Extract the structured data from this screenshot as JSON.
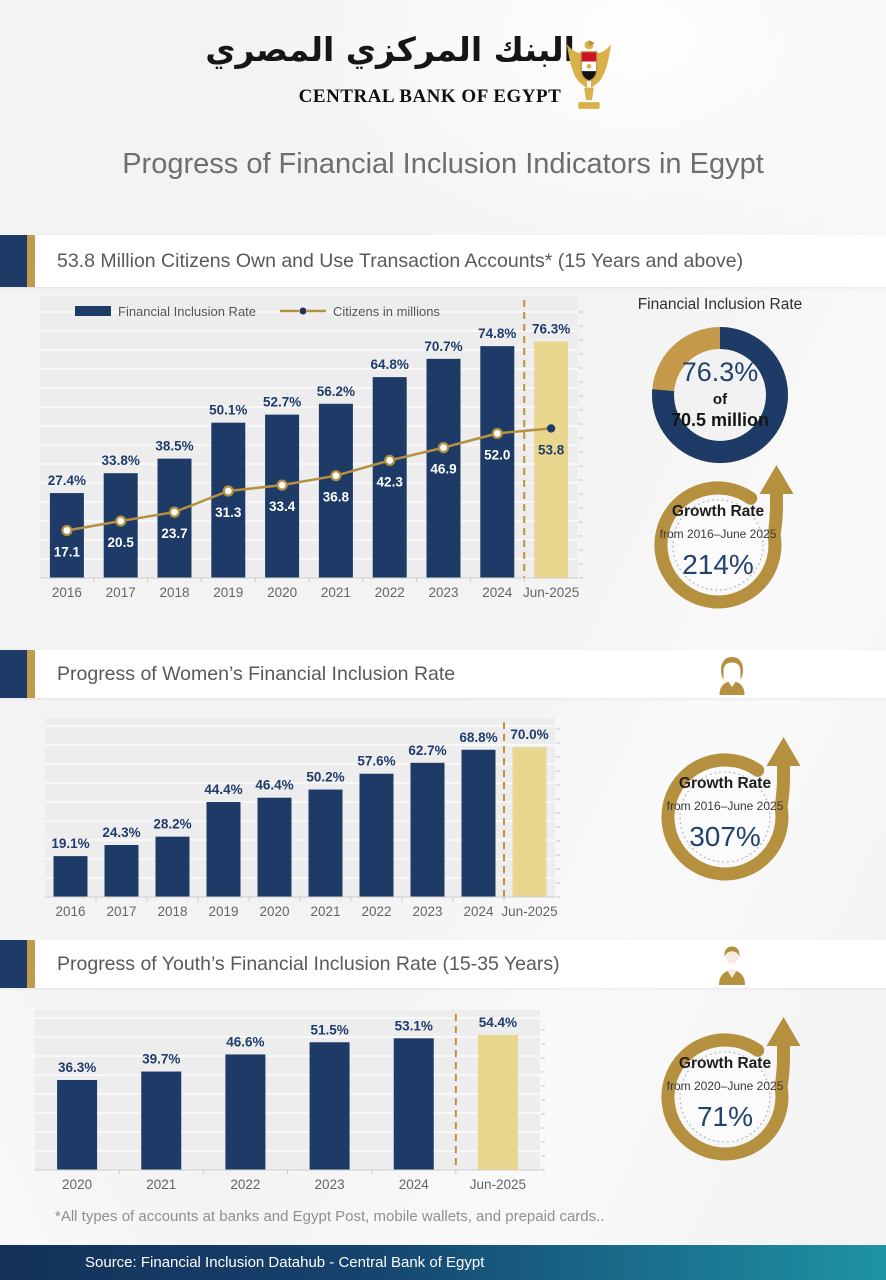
{
  "header": {
    "logo_arabic": "البنك المركزي المصري",
    "logo_english": "CENTRAL BANK OF EGYPT",
    "emblem": "egypt-eagle-emblem"
  },
  "page_title": "Progress of Financial Inclusion Indicators in Egypt",
  "sections": [
    {
      "title": "53.8 Million Citizens Own and Use Transaction Accounts* (15 Years and above)",
      "icon": "none"
    },
    {
      "title": "Progress of Women’s Financial Inclusion Rate",
      "icon": "woman-icon"
    },
    {
      "title": "Progress of Youth’s Financial Inclusion Rate (15-35 Years)",
      "icon": "young-man-icon"
    }
  ],
  "inclusion_panel": {
    "title": "Financial Inclusion Rate",
    "percent_label": "76.3%",
    "of_label": "of",
    "total_label": "70.5 million",
    "percent_value": 76.3
  },
  "growth_panels": [
    {
      "label": "Growth Rate",
      "range": "from 2016–June 2025",
      "value": "214%"
    },
    {
      "label": "Growth Rate",
      "range": "from 2016–June 2025",
      "value": "307%"
    },
    {
      "label": "Growth Rate",
      "range": "from 2020–June 2025",
      "value": "71%"
    }
  ],
  "chart_data": [
    {
      "type": "bar",
      "title": "53.8 Million Citizens Own and Use Transaction Accounts* (15 Years and above)",
      "categories": [
        "2016",
        "2017",
        "2018",
        "2019",
        "2020",
        "2021",
        "2022",
        "2023",
        "2024",
        "Jun-2025"
      ],
      "series": [
        {
          "name": "Financial Inclusion Rate",
          "kind": "bar",
          "unit": "%",
          "values": [
            27.4,
            33.8,
            38.5,
            50.1,
            52.7,
            56.2,
            64.8,
            70.7,
            74.8,
            76.3
          ]
        },
        {
          "name": "Citizens in millions",
          "kind": "line",
          "unit": "millions",
          "values": [
            17.1,
            20.5,
            23.7,
            31.3,
            33.4,
            36.8,
            42.3,
            46.9,
            52.0,
            53.8
          ]
        }
      ],
      "legend": [
        "Financial Inclusion Rate",
        "Citizens in millions"
      ],
      "legend_position": "top",
      "grid": true,
      "highlight_last_category": true,
      "ylim": [
        0,
        90
      ]
    },
    {
      "type": "bar",
      "title": "Progress of Women’s Financial Inclusion Rate",
      "categories": [
        "2016",
        "2017",
        "2018",
        "2019",
        "2020",
        "2021",
        "2022",
        "2023",
        "2024",
        "Jun-2025"
      ],
      "values": [
        19.1,
        24.3,
        28.2,
        44.4,
        46.4,
        50.2,
        57.6,
        62.7,
        68.8,
        70.0
      ],
      "unit": "%",
      "grid": true,
      "highlight_last_category": true,
      "ylim": [
        0,
        83
      ]
    },
    {
      "type": "bar",
      "title": "Progress of Youth’s Financial Inclusion Rate (15-35 Years)",
      "categories": [
        "2020",
        "2021",
        "2022",
        "2023",
        "2024",
        "Jun-2025"
      ],
      "values": [
        36.3,
        39.7,
        46.6,
        51.5,
        53.1,
        54.4
      ],
      "unit": "%",
      "grid": true,
      "highlight_last_category": true,
      "ylim": [
        0,
        64
      ]
    }
  ],
  "footnote": "*All types of accounts at banks and Egypt Post, mobile wallets, and prepaid cards..",
  "source": "Source:  Financial Inclusion Datahub - Central Bank of Egypt",
  "colors": {
    "navy": "#1e3a66",
    "navy_text": "#1f3c6a",
    "gold": "#b5903f",
    "gold_dark": "#c28f3e",
    "pale_gold": "#e9d68f",
    "plot_bg": "#ededee",
    "grid_line": "#f8f8f9",
    "page_bg": "#f3f3f4",
    "source_navy": "#143158",
    "source_teal": "#1e93a4",
    "flag_red": "#ce1126",
    "flag_black": "#000000"
  }
}
